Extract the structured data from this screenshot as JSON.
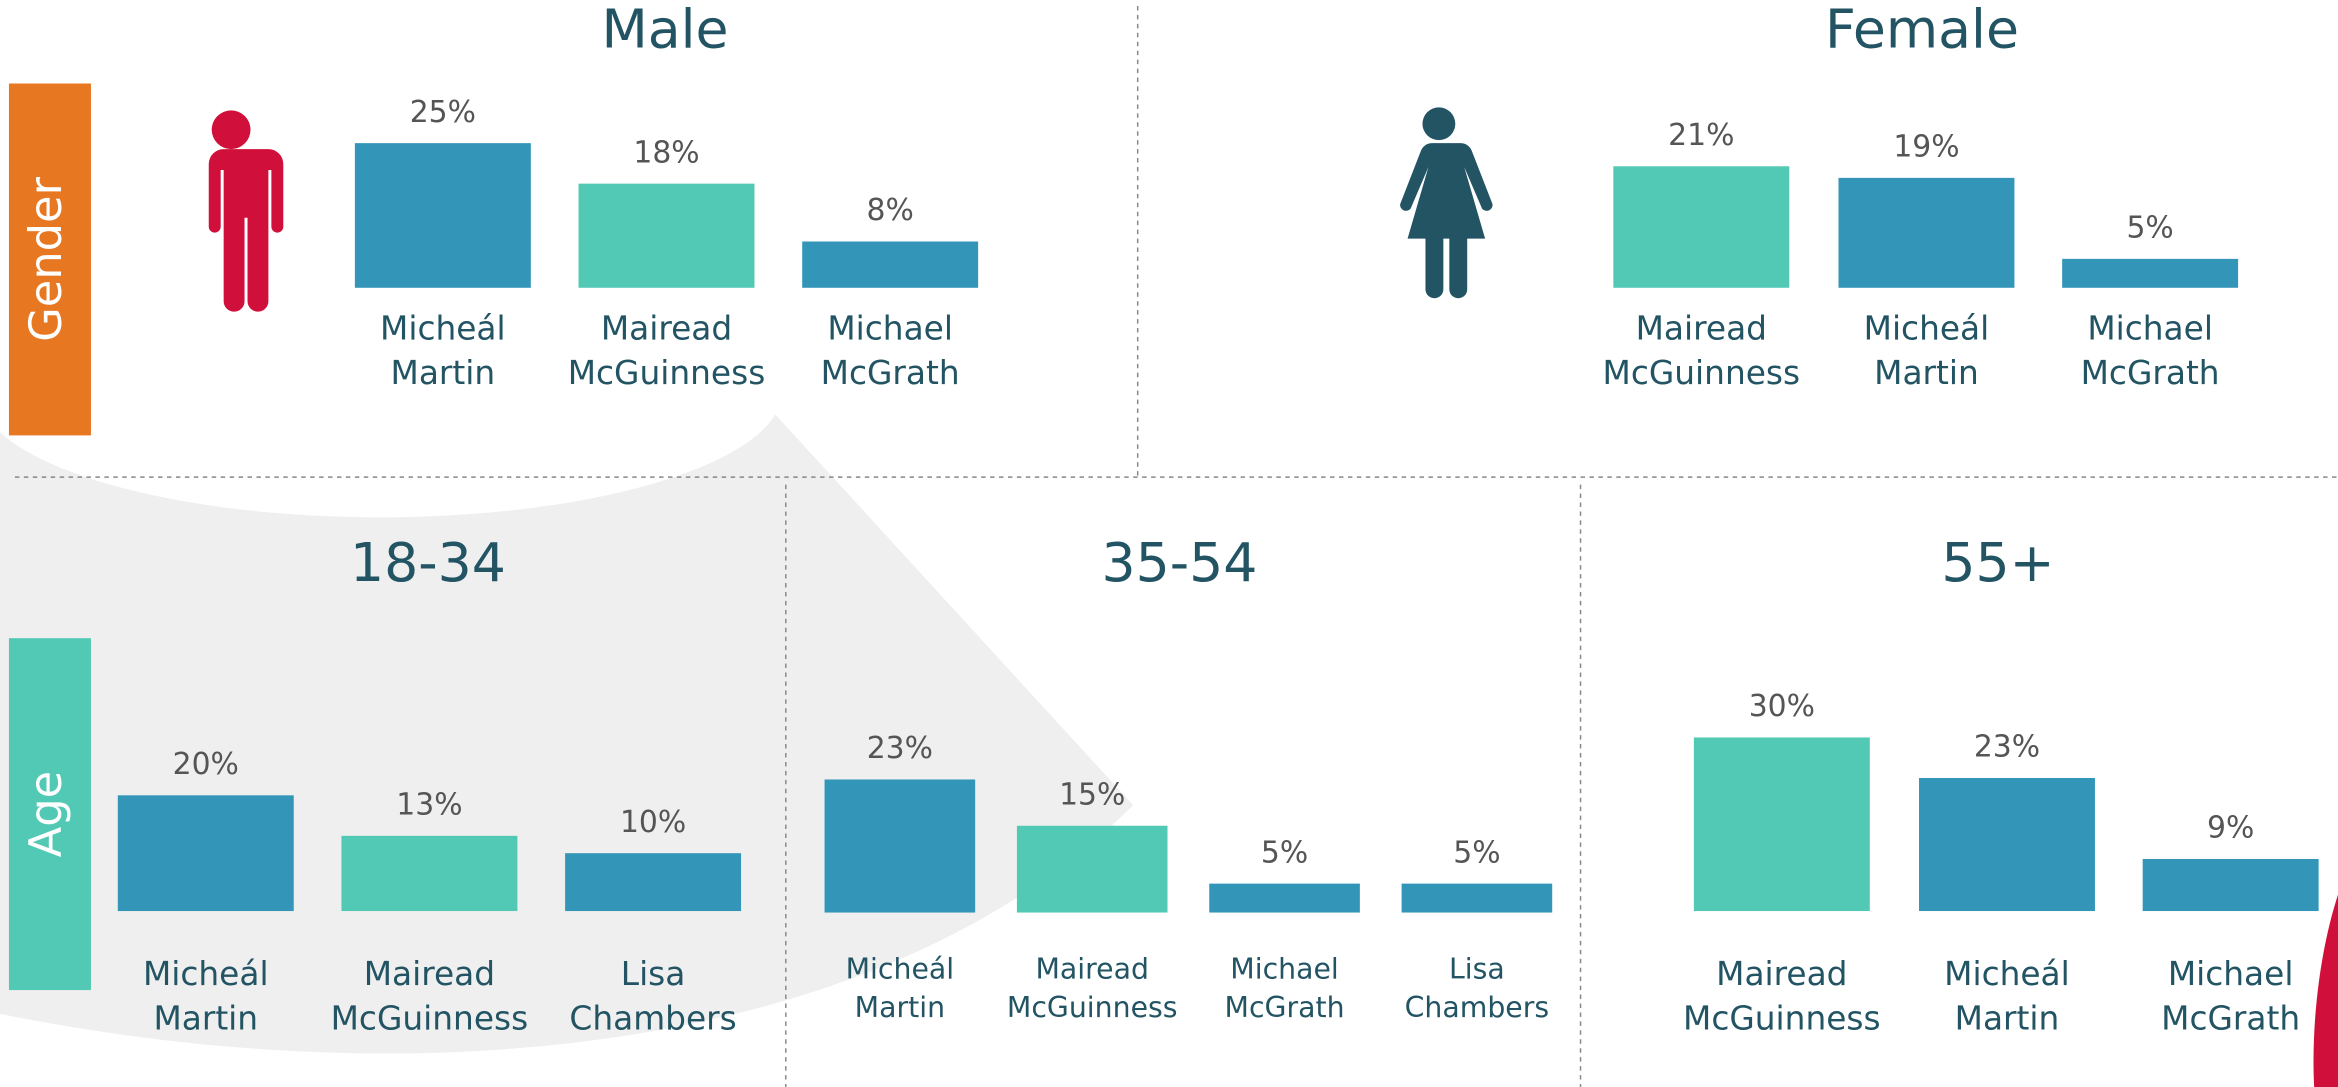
{
  "sections": [
    "Gender",
    "Age"
  ],
  "chart_data": [
    {
      "type": "bar",
      "title": "Male",
      "categories": [
        "Micheál Martin",
        "Mairead McGuinness",
        "Michael McGrath"
      ],
      "values": [
        25,
        18,
        8
      ],
      "value_labels": [
        "25%",
        "18%",
        "8%"
      ],
      "colors": [
        "#3395b8",
        "#52c9b4",
        "#3395b8"
      ]
    },
    {
      "type": "bar",
      "title": "Female",
      "categories": [
        "Mairead McGuinness",
        "Micheál Martin",
        "Michael McGrath"
      ],
      "values": [
        21,
        19,
        5
      ],
      "value_labels": [
        "21%",
        "19%",
        "5%"
      ],
      "colors": [
        "#52c9b4",
        "#3395b8",
        "#3395b8"
      ]
    },
    {
      "type": "bar",
      "title": "18-34",
      "categories": [
        "Micheál Martin",
        "Mairead McGuinness",
        "Lisa Chambers"
      ],
      "values": [
        20,
        13,
        10
      ],
      "value_labels": [
        "20%",
        "13%",
        "10%"
      ],
      "colors": [
        "#3395b8",
        "#52c9b4",
        "#3395b8"
      ]
    },
    {
      "type": "bar",
      "title": "35-54",
      "categories": [
        "Micheál Martin",
        "Mairead McGuinness",
        "Michael McGrath",
        "Lisa Chambers"
      ],
      "values": [
        23,
        15,
        5,
        5
      ],
      "value_labels": [
        "23%",
        "15%",
        "5%",
        "5%"
      ],
      "colors": [
        "#3395b8",
        "#52c9b4",
        "#3395b8",
        "#3395b8"
      ]
    },
    {
      "type": "bar",
      "title": "55+",
      "categories": [
        "Mairead McGuinness",
        "Micheál Martin",
        "Michael McGrath"
      ],
      "values": [
        30,
        23,
        9
      ],
      "value_labels": [
        "30%",
        "23%",
        "9%"
      ],
      "colors": [
        "#52c9b4",
        "#3395b8",
        "#3395b8"
      ]
    }
  ]
}
